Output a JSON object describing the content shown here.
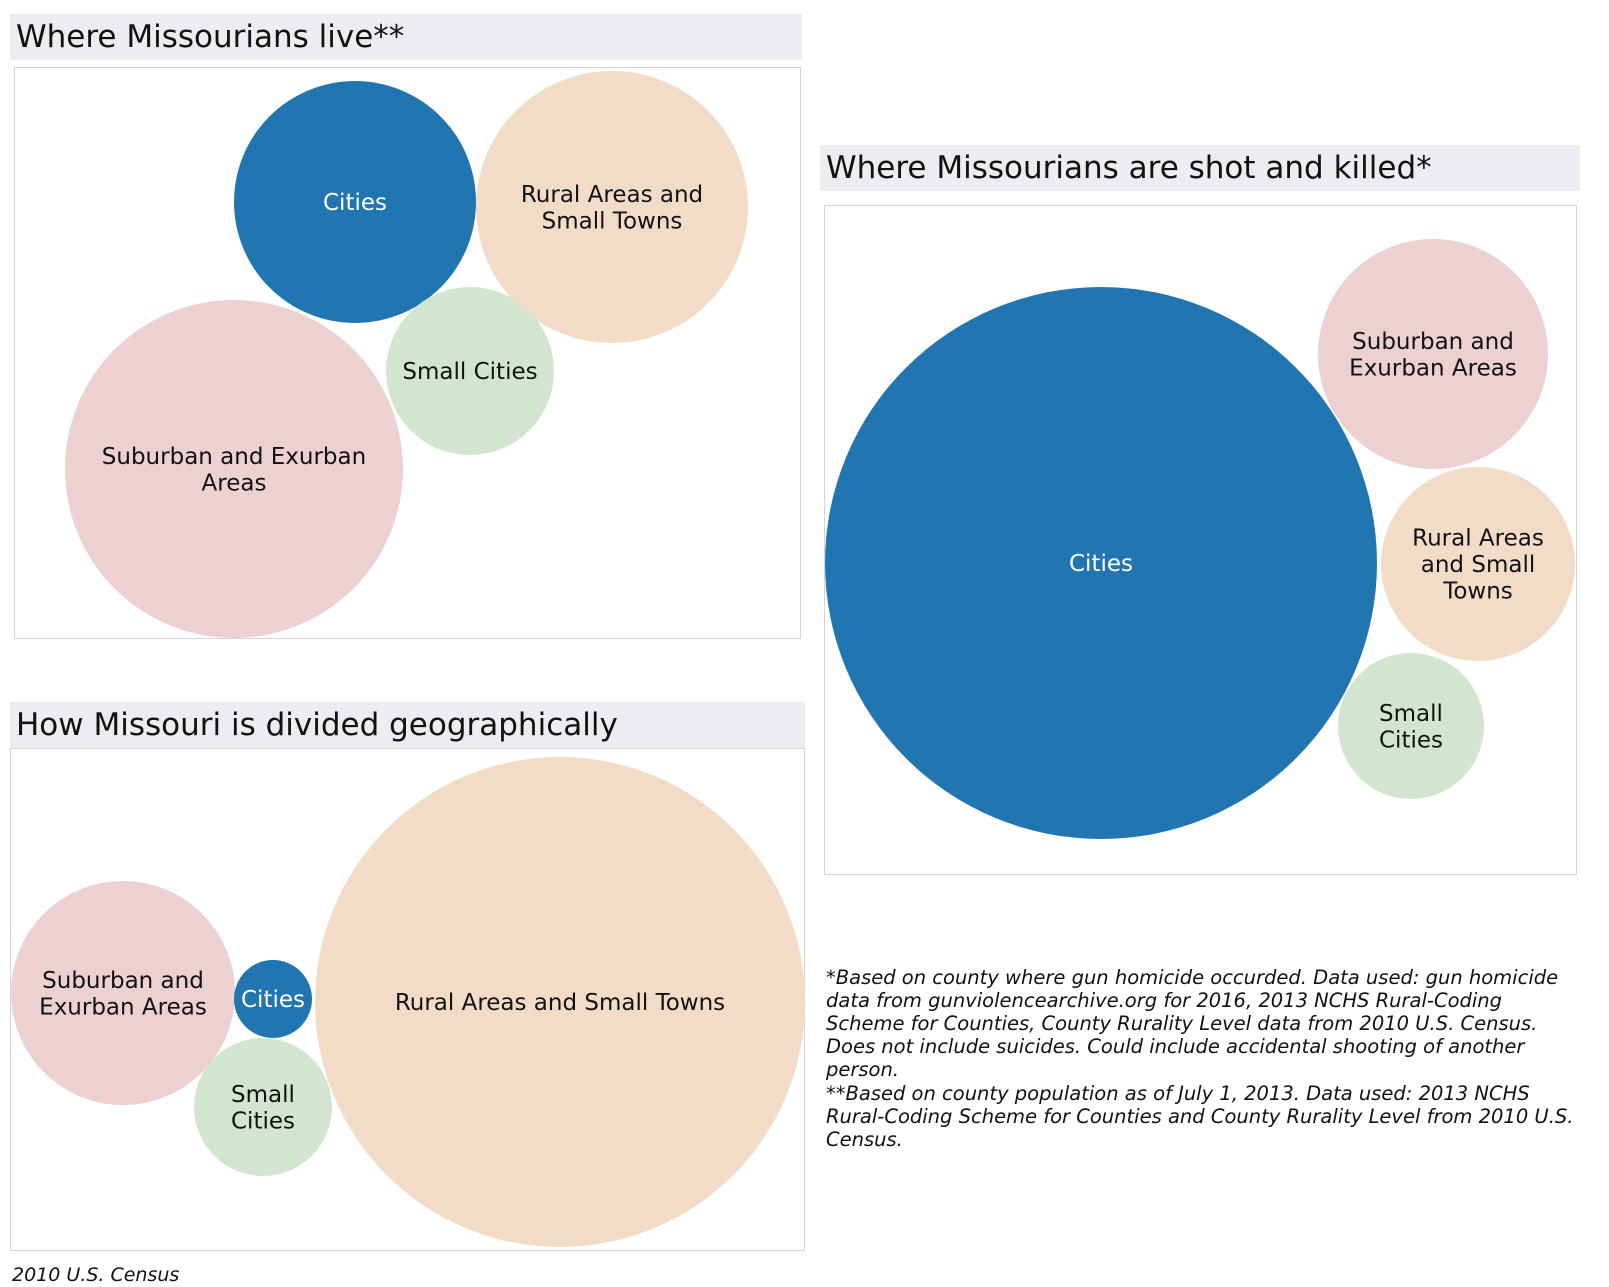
{
  "colors": {
    "Cities": "#2176b2",
    "Rural Areas and Small Towns": "#f3dcc7",
    "Small Cities": "#d1e5cf",
    "Suburban and Exurban Areas": "#edd0d2",
    "panel_title_bg": "#ecedf1",
    "panel_border": "#d4d4d4"
  },
  "chart_data": [
    {
      "type": "bubble",
      "title": "Where Missourians live**",
      "bubbles": [
        {
          "category": "Cities",
          "label": [
            "Cities"
          ],
          "relative_size": 1.0
        },
        {
          "category": "Rural Areas and Small Towns",
          "label": [
            "Rural Areas and",
            "Small Towns"
          ],
          "relative_size": 1.27
        },
        {
          "category": "Small Cities",
          "label": [
            "Small Cities"
          ],
          "relative_size": 0.48
        },
        {
          "category": "Suburban and Exurban Areas",
          "label": [
            "Suburban and Exurban",
            "Areas"
          ],
          "relative_size": 1.96
        }
      ]
    },
    {
      "type": "bubble",
      "title": "Where Missourians are shot and killed*",
      "bubbles": [
        {
          "category": "Cities",
          "label": [
            "Cities"
          ],
          "relative_size": 1.0
        },
        {
          "category": "Suburban and Exurban Areas",
          "label": [
            "Suburban and",
            "Exurban Areas"
          ],
          "relative_size": 0.175
        },
        {
          "category": "Rural Areas and Small Towns",
          "label": [
            "Rural Areas",
            "and Small",
            "Towns"
          ],
          "relative_size": 0.125
        },
        {
          "category": "Small Cities",
          "label": [
            "Small",
            "Cities"
          ],
          "relative_size": 0.07
        }
      ]
    },
    {
      "type": "bubble",
      "title": "How Missouri is divided geographically",
      "bubbles": [
        {
          "category": "Suburban and Exurban Areas",
          "label": [
            "Suburban and",
            "Exurban Areas"
          ],
          "relative_size": 0.21
        },
        {
          "category": "Cities",
          "label": [
            "Cities"
          ],
          "relative_size": 0.026
        },
        {
          "category": "Small Cities",
          "label": [
            "Small",
            "Cities"
          ],
          "relative_size": 0.08
        },
        {
          "category": "Rural Areas and Small Towns",
          "label": [
            "Rural Areas and Small Towns"
          ],
          "relative_size": 1.0
        }
      ]
    }
  ],
  "notes": {
    "shot_note": "*Based on county where gun homicide occurded. Data used: gun homicide data from gunviolencearchive.org for 2016, 2013 NCHS Rural-Coding Scheme for Counties, County Rurality Level data from 2010 U.S. Census. Does not include suicides. Could include accidental shooting of another person.",
    "live_note": "**Based on county population as of July 1, 2013. Data used: 2013 NCHS Rural-Coding Scheme for Counties and County Rurality Level from 2010 U.S. Census.",
    "source": "2010 U.S. Census"
  }
}
